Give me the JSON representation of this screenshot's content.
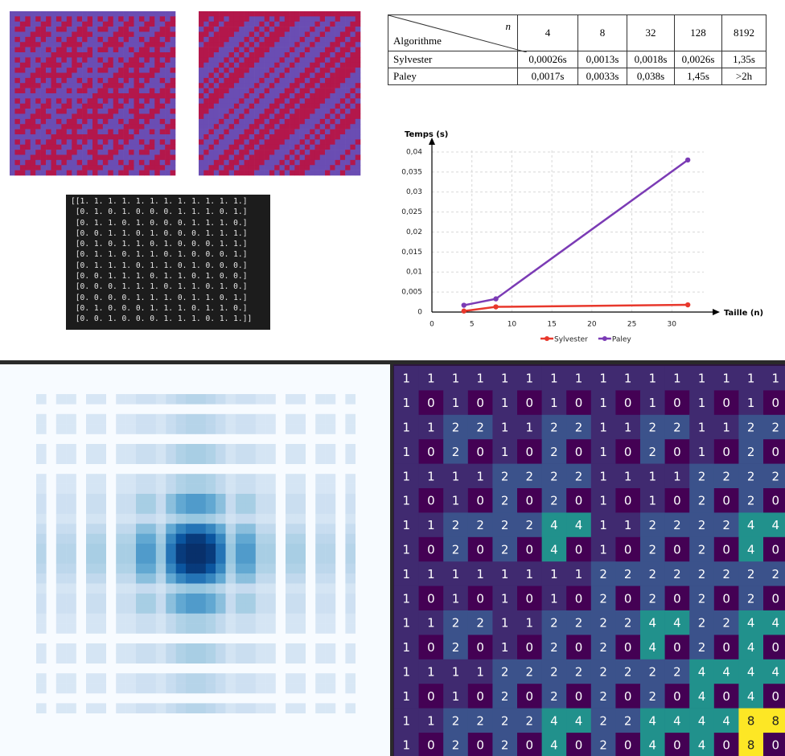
{
  "table": {
    "header": {
      "n": "n",
      "algo": "Algorithme",
      "sizes": [
        "4",
        "8",
        "32",
        "128",
        "8192"
      ]
    },
    "rows": [
      [
        "Sylvester",
        "0,00026s",
        "0,0013s",
        "0,0018s",
        "0,0026s",
        "1,35s"
      ],
      [
        "Paley",
        "0,0017s",
        "0,0033s",
        "0,038s",
        "1,45s",
        ">2h"
      ]
    ]
  },
  "terminal": {
    "lines": [
      "[[1. 1. 1. 1. 1. 1. 1. 1. 1. 1. 1. 1.]",
      " [0. 1. 0. 1. 0. 0. 0. 1. 1. 1. 0. 1.]",
      " [0. 1. 1. 0. 1. 0. 0. 0. 1. 1. 1. 0.]",
      " [0. 0. 1. 1. 0. 1. 0. 0. 0. 1. 1. 1.]",
      " [0. 1. 0. 1. 1. 0. 1. 0. 0. 0. 1. 1.]",
      " [0. 1. 1. 0. 1. 1. 0. 1. 0. 0. 0. 1.]",
      " [0. 1. 1. 1. 0. 1. 1. 0. 1. 0. 0. 0.]",
      " [0. 0. 1. 1. 1. 0. 1. 1. 0. 1. 0. 0.]",
      " [0. 0. 0. 1. 1. 1. 0. 1. 1. 0. 1. 0.]",
      " [0. 0. 0. 0. 1. 1. 1. 0. 1. 1. 0. 1.]",
      " [0. 1. 0. 0. 0. 1. 1. 1. 0. 1. 1. 0.]",
      " [0. 0. 1. 0. 0. 0. 1. 1. 1. 0. 1. 1.]]"
    ]
  },
  "chart_data": {
    "type": "line",
    "ylabel": "Temps (s)",
    "xlabel": "Taille (n)",
    "x": [
      4,
      8,
      32
    ],
    "series": [
      {
        "name": "Sylvester",
        "color": "#e8382c",
        "values": [
          0.00026,
          0.0013,
          0.0018
        ]
      },
      {
        "name": "Paley",
        "color": "#7b3bb5",
        "values": [
          0.0017,
          0.0033,
          0.038
        ]
      }
    ],
    "xlim": [
      0,
      35
    ],
    "ylim": [
      0,
      0.042
    ],
    "xticks": [
      0,
      5,
      10,
      15,
      20,
      25,
      30
    ],
    "yticks": [
      0,
      {
        "value": 0.005,
        "label": "0,005"
      },
      {
        "value": 0.01,
        "label": "0,01"
      },
      {
        "value": 0.015,
        "label": "0,015"
      },
      {
        "value": 0.02,
        "label": "0,02"
      },
      {
        "value": 0.025,
        "label": "0,025"
      },
      {
        "value": 0.03,
        "label": "0,03"
      },
      {
        "value": 0.035,
        "label": "0,035"
      },
      {
        "value": 0.04,
        "label": "0,04"
      }
    ],
    "grid": true
  },
  "matrix": {
    "rows": [
      [
        1,
        1,
        1,
        1,
        1,
        1,
        1,
        1,
        1,
        1,
        1,
        1,
        1,
        1,
        1,
        1
      ],
      [
        1,
        0,
        1,
        0,
        1,
        0,
        1,
        0,
        1,
        0,
        1,
        0,
        1,
        0,
        1,
        0
      ],
      [
        1,
        1,
        2,
        2,
        1,
        1,
        2,
        2,
        1,
        1,
        2,
        2,
        1,
        1,
        2,
        2
      ],
      [
        1,
        0,
        2,
        0,
        1,
        0,
        2,
        0,
        1,
        0,
        2,
        0,
        1,
        0,
        2,
        0
      ],
      [
        1,
        1,
        1,
        1,
        2,
        2,
        2,
        2,
        1,
        1,
        1,
        1,
        2,
        2,
        2,
        2
      ],
      [
        1,
        0,
        1,
        0,
        2,
        0,
        2,
        0,
        1,
        0,
        1,
        0,
        2,
        0,
        2,
        0
      ],
      [
        1,
        1,
        2,
        2,
        2,
        2,
        4,
        4,
        1,
        1,
        2,
        2,
        2,
        2,
        4,
        4
      ],
      [
        1,
        0,
        2,
        0,
        2,
        0,
        4,
        0,
        1,
        0,
        2,
        0,
        2,
        0,
        4,
        0
      ],
      [
        1,
        1,
        1,
        1,
        1,
        1,
        1,
        1,
        2,
        2,
        2,
        2,
        2,
        2,
        2,
        2
      ],
      [
        1,
        0,
        1,
        0,
        1,
        0,
        1,
        0,
        2,
        0,
        2,
        0,
        2,
        0,
        2,
        0
      ],
      [
        1,
        1,
        2,
        2,
        1,
        1,
        2,
        2,
        2,
        2,
        4,
        4,
        2,
        2,
        4,
        4
      ],
      [
        1,
        0,
        2,
        0,
        1,
        0,
        2,
        0,
        2,
        0,
        4,
        0,
        2,
        0,
        4,
        0
      ],
      [
        1,
        1,
        1,
        1,
        2,
        2,
        2,
        2,
        2,
        2,
        2,
        2,
        4,
        4,
        4,
        4
      ],
      [
        1,
        0,
        1,
        0,
        2,
        0,
        2,
        0,
        2,
        0,
        2,
        0,
        4,
        0,
        4,
        0
      ],
      [
        1,
        1,
        2,
        2,
        2,
        2,
        4,
        4,
        2,
        2,
        4,
        4,
        4,
        4,
        8,
        8
      ],
      [
        1,
        0,
        2,
        0,
        2,
        0,
        4,
        0,
        2,
        0,
        4,
        0,
        4,
        0,
        8,
        0
      ]
    ]
  }
}
